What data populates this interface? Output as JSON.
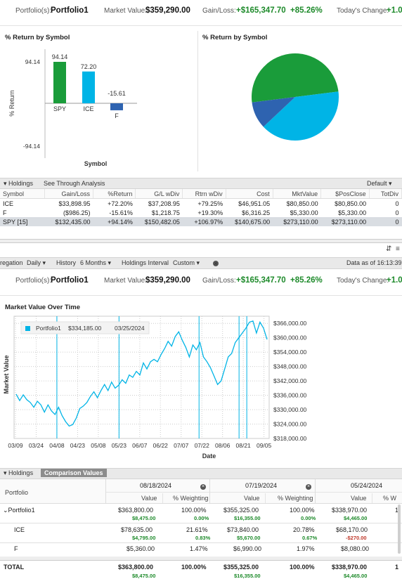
{
  "header": {
    "portfolio_label": "Portfolio(s):",
    "portfolio_name": "Portfolio1",
    "market_value_label": "Market Value:",
    "market_value": "$359,290.00",
    "gain_loss_label": "Gain/Loss:",
    "gain_loss": "+$165,347.70",
    "gain_loss_pct": "+85.26%",
    "todays_change_label": "Today's Change:",
    "todays_change": "+1.0"
  },
  "bar_panel": {
    "title": "% Return by Symbol",
    "ylabel": "% Return",
    "xlabel": "Symbol"
  },
  "pie_panel": {
    "title": "% Return by Symbol"
  },
  "chart_data": [
    {
      "type": "bar",
      "title": "% Return by Symbol",
      "xlabel": "Symbol",
      "ylabel": "% Return",
      "categories": [
        "SPY",
        "ICE",
        "F"
      ],
      "values": [
        94.14,
        72.2,
        -15.61
      ],
      "value_labels": [
        "94.14",
        "72.20",
        "-15.61"
      ],
      "ylim": [
        -94.14,
        94.14
      ],
      "y_ticks": [
        "94.14",
        "-94.14"
      ],
      "colors": [
        "#1a9c3a",
        "#00b4e6",
        "#2e63b0"
      ]
    },
    {
      "type": "pie",
      "title": "% Return by Symbol",
      "categories": [
        "SPY",
        "ICE",
        "F"
      ],
      "values": [
        0.5,
        0.4,
        0.1
      ],
      "colors": [
        "#1a9c3a",
        "#00b4e6",
        "#2e63b0"
      ]
    },
    {
      "type": "line",
      "title": "Market Value Over Time",
      "xlabel": "Date",
      "ylabel": "Market Value",
      "x_ticks": [
        "03/09",
        "03/24",
        "04/08",
        "04/23",
        "05/08",
        "05/23",
        "06/07",
        "06/22",
        "07/07",
        "07/22",
        "08/06",
        "08/21",
        "09/05"
      ],
      "y_ticks": [
        "$366,000.00",
        "$360,000.00",
        "$354,000.00",
        "$348,000.00",
        "$342,000.00",
        "$336,000.00",
        "$330,000.00",
        "$324,000.00",
        "$318,000.00"
      ],
      "ylim": [
        318000,
        369000
      ],
      "legend": {
        "series": "Portfolio1",
        "value": "$334,185.00",
        "date": "03/25/2024",
        "placement": "top-left"
      },
      "markers_x": [
        "04/08",
        "05/23",
        "07/19",
        "08/18",
        "08/24"
      ],
      "series": [
        {
          "name": "Portfolio1",
          "color": "#00b4e6",
          "values": [
            336500,
            333800,
            336200,
            334185,
            333000,
            331000,
            333500,
            332000,
            329000,
            332000,
            329500,
            328000,
            331000,
            327500,
            325000,
            323200,
            323800,
            326500,
            330500,
            331500,
            333000,
            335500,
            337500,
            335000,
            338000,
            340500,
            338000,
            341500,
            339000,
            340200,
            342500,
            341000,
            344500,
            343500,
            346000,
            344500,
            349500,
            347000,
            350000,
            351000,
            350000,
            353000,
            355500,
            358500,
            356500,
            360500,
            362500,
            359000,
            356000,
            352000,
            357000,
            355000,
            358000,
            352000,
            350000,
            347500,
            344000,
            340500,
            342000,
            347000,
            352000,
            353500,
            358000,
            360000,
            362000,
            364000,
            366500,
            367000,
            362000,
            366500,
            364000,
            359290
          ]
        }
      ]
    }
  ],
  "holdings_toolbar": {
    "label": "Holdings",
    "analysis": "See Through Analysis",
    "view": "Default"
  },
  "holdings": {
    "columns": [
      "Symbol",
      "Gain/Loss",
      "%Return",
      "G/L wDiv",
      "Rtrn wDiv",
      "Cost",
      "MktValue",
      "$PosClose",
      "TotDiv"
    ],
    "rows": [
      [
        "ICE",
        "$33,898.95",
        "+72.20%",
        "$37,208.95",
        "+79.25%",
        "$46,951.05",
        "$80,850.00",
        "$80,850.00",
        "0"
      ],
      [
        "F",
        "($986.25)",
        "-15.61%",
        "$1,218.75",
        "+19.30%",
        "$6,316.25",
        "$5,330.00",
        "$5,330.00",
        "0"
      ],
      [
        "SPY [15]",
        "$132,435.00",
        "+94.14%",
        "$150,482.05",
        "+106.97%",
        "$140,675.00",
        "$273,110.00",
        "$273,110.00",
        "0"
      ]
    ]
  },
  "controls": {
    "aggregation_label": "regation",
    "aggregation": "Daily",
    "history_label": "History",
    "history": "6 Months",
    "interval_label": "Holdings Interval",
    "interval": "Custom",
    "data_as_of": "Data as of 16:13:39"
  },
  "header2": {
    "portfolio_label": "Portfolio(s):",
    "portfolio_name": "Portfolio1",
    "market_value_label": "Market Value:",
    "market_value": "$359,290.00",
    "gain_loss_label": "Gain/Loss:",
    "gain_loss": "+$165,347.70",
    "gain_loss_pct": "+85.26%",
    "todays_change_label": "Today's Change:",
    "todays_change": "+1.0"
  },
  "mv_panel": {
    "title": "Market Value Over Time",
    "ylabel": "Market Value",
    "xlabel": "Date"
  },
  "comparison": {
    "tabs": [
      "Holdings",
      "Comparison Values"
    ],
    "portfolio_col": "Portfolio",
    "dates": [
      "08/18/2024",
      "07/19/2024",
      "05/24/2024"
    ],
    "value_col": "Value",
    "weight_col": "% Weighting",
    "weight_col_trunc": "% W",
    "rows": {
      "portfolio1": {
        "name": "Portfolio1",
        "v1": "$363,800.00",
        "s1": "$8,475.00",
        "w1": "100.00%",
        "ws1": "0.00%",
        "v2": "$355,325.00",
        "s2": "$16,355.00",
        "w2": "100.00%",
        "ws2": "0.00%",
        "v3": "$338,970.00",
        "s3": "$4,465.00",
        "w3": "1"
      },
      "ice": {
        "name": "ICE",
        "v1": "$78,635.00",
        "s1": "$4,795.00",
        "w1": "21.61%",
        "ws1": "0.83%",
        "v2": "$73,840.00",
        "s2": "$5,670.00",
        "w2": "20.78%",
        "ws2": "0.67%",
        "v3": "$68,170.00",
        "s3": "-$270.00"
      },
      "f": {
        "name": "F",
        "v1": "$5,360.00",
        "w1": "1.47%",
        "v2": "$6,990.00",
        "w2": "1.97%",
        "v3": "$8,080.00"
      },
      "total": {
        "name": "TOTAL",
        "v1": "$363,800.00",
        "s1": "$8,475.00",
        "w1": "100.00%",
        "v2": "$355,325.00",
        "s2": "$16,355.00",
        "w2": "100.00%",
        "v3": "$338,970.00",
        "s3": "$4,465.00",
        "w3": "1"
      }
    }
  },
  "colors": {
    "accent": "#00b4e6",
    "gain": "#1d8a2a",
    "loss": "#c0392b"
  }
}
